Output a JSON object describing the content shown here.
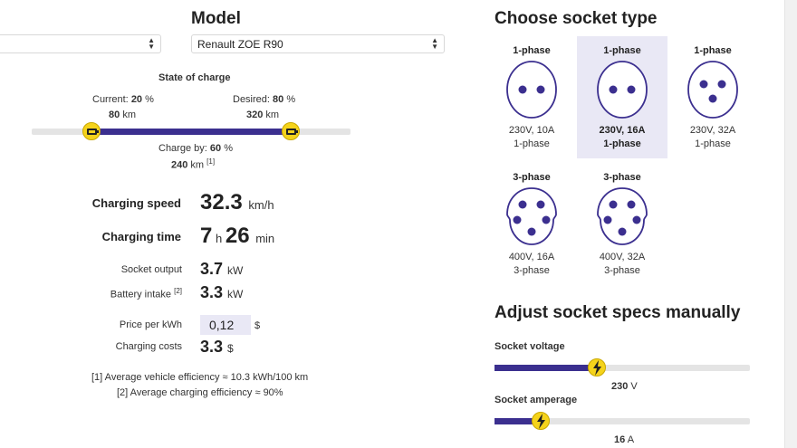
{
  "model": {
    "heading": "Model",
    "left_select_value": "",
    "right_select_value": "Renault ZOE R90"
  },
  "state_of_charge": {
    "title": "State of charge",
    "current_label": "Current:",
    "current_pct": "20",
    "current_km": "80",
    "desired_label": "Desired:",
    "desired_pct": "80",
    "desired_km": "320",
    "charge_by_label": "Charge by:",
    "charge_by_pct": "60",
    "charge_by_km": "240",
    "pct_unit": "%",
    "km_unit": "km",
    "footnote_ref": "[1]",
    "current_fraction": 0.2,
    "desired_fraction": 0.8
  },
  "results": {
    "charging_speed_label": "Charging speed",
    "charging_speed_value": "32.3",
    "charging_speed_unit": "km/h",
    "charging_time_label": "Charging time",
    "charging_time_hours": "7",
    "hours_unit": "h",
    "charging_time_minutes": "26",
    "minutes_unit": "min",
    "socket_output_label": "Socket output",
    "socket_output_value": "3.7",
    "socket_output_unit": "kW",
    "battery_intake_label": "Battery intake",
    "battery_intake_ref": "[2]",
    "battery_intake_value": "3.3",
    "battery_intake_unit": "kW",
    "price_label": "Price per kWh",
    "price_value": "0,12",
    "price_unit": "$",
    "costs_label": "Charging costs",
    "costs_value": "3.3",
    "costs_unit": "$"
  },
  "footnotes": {
    "note1": "[1] Average vehicle efficiency ≈ 10.3 kWh/100 km",
    "note2": "[2] Average charging efficiency ≈ 90%"
  },
  "sockets": {
    "heading": "Choose socket type",
    "items": [
      {
        "phase": "1-phase",
        "spec": "230V, 10A",
        "sub": "1-phase",
        "icon": "two-pin-socket-icon",
        "selected": false
      },
      {
        "phase": "1-phase",
        "spec": "230V, 16A",
        "sub": "1-phase",
        "icon": "two-pin-socket-icon",
        "selected": true
      },
      {
        "phase": "1-phase",
        "spec": "230V, 32A",
        "sub": "1-phase",
        "icon": "three-pin-socket-icon",
        "selected": false
      },
      {
        "phase": "3-phase",
        "spec": "400V, 16A",
        "sub": "3-phase",
        "icon": "five-pin-socket-icon",
        "selected": false
      },
      {
        "phase": "3-phase",
        "spec": "400V, 32A",
        "sub": "3-phase",
        "icon": "five-pin-socket-icon",
        "selected": false
      }
    ]
  },
  "manual": {
    "heading": "Adjust socket specs manually",
    "voltage_label": "Socket voltage",
    "voltage_value": "230",
    "voltage_unit": "V",
    "voltage_fraction": 0.4,
    "amperage_label": "Socket amperage",
    "amperage_value": "16",
    "amperage_unit": "A",
    "amperage_fraction": 0.18
  },
  "colors": {
    "accent": "#3b2f8f",
    "knob": "#f5d31b",
    "selected_bg": "#e9e8f5"
  }
}
